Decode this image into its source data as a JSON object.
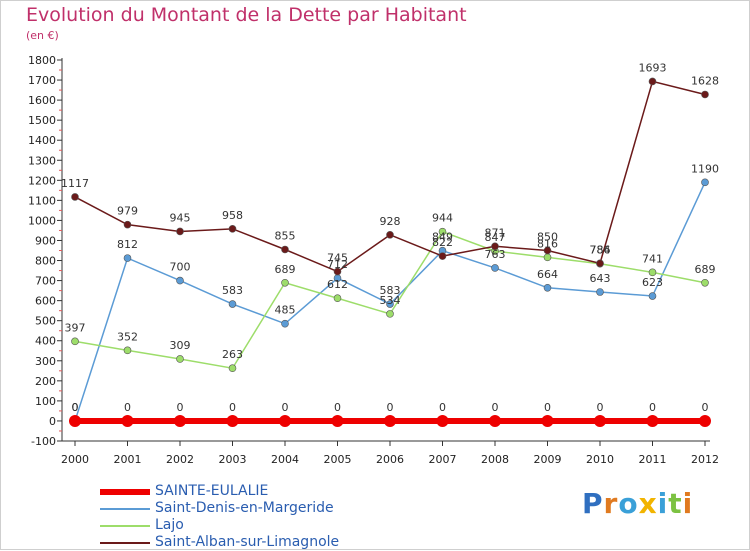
{
  "chart_data": {
    "type": "line",
    "title": "Evolution du Montant de la Dette par Habitant",
    "subtitle": "(en €)",
    "x": [
      "2000",
      "2001",
      "2002",
      "2003",
      "2004",
      "2005",
      "2006",
      "2007",
      "2008",
      "2009",
      "2010",
      "2011",
      "2012"
    ],
    "y_ticks": [
      "-100",
      "0",
      "100",
      "200",
      "300",
      "400",
      "500",
      "600",
      "700",
      "800",
      "900",
      "1000",
      "1100",
      "1200",
      "1300",
      "1400",
      "1500",
      "1600",
      "1700",
      "1800"
    ],
    "ylim": [
      -100,
      1800
    ],
    "grid": false,
    "legend_position": "bottom-left",
    "series": [
      {
        "name": "SAINTE-EULALIE",
        "color": "#ee0000",
        "values": [
          0,
          0,
          0,
          0,
          0,
          0,
          0,
          0,
          0,
          0,
          0,
          0,
          0
        ],
        "labels": [
          "0",
          "0",
          "0",
          "0",
          "0",
          "0",
          "0",
          "0",
          "0",
          "0",
          "0",
          "0",
          "0"
        ]
      },
      {
        "name": "Saint-Denis-en-Margeride",
        "color": "#5b9bd5",
        "values": [
          0,
          812,
          700,
          583,
          485,
          712,
          583,
          849,
          763,
          664,
          643,
          623,
          1190
        ],
        "labels": [
          "0",
          "812",
          "700",
          "583",
          "485",
          "712",
          "583",
          "849",
          "763",
          "664",
          "643",
          "623",
          "1190"
        ]
      },
      {
        "name": "Lajo",
        "color": "#9ddd6a",
        "values": [
          397,
          352,
          309,
          263,
          689,
          612,
          534,
          944,
          847,
          816,
          784,
          741,
          689
        ],
        "labels": [
          "397",
          "352",
          "309",
          "263",
          "689",
          "612",
          "534",
          "944",
          "847",
          "816",
          "784",
          "741",
          "689"
        ]
      },
      {
        "name": "Saint-Alban-sur-Limagnole",
        "color": "#6b1a1a",
        "values": [
          1117,
          979,
          945,
          958,
          855,
          745,
          928,
          822,
          871,
          850,
          786,
          1693,
          1628
        ],
        "labels": [
          "1117",
          "979",
          "945",
          "958",
          "855",
          "745",
          "928",
          "822",
          "871",
          "850",
          "786",
          "1693",
          "1628"
        ]
      }
    ]
  },
  "logo": {
    "letters": [
      "P",
      "r",
      "o",
      "x",
      "i",
      "t",
      "i"
    ]
  }
}
